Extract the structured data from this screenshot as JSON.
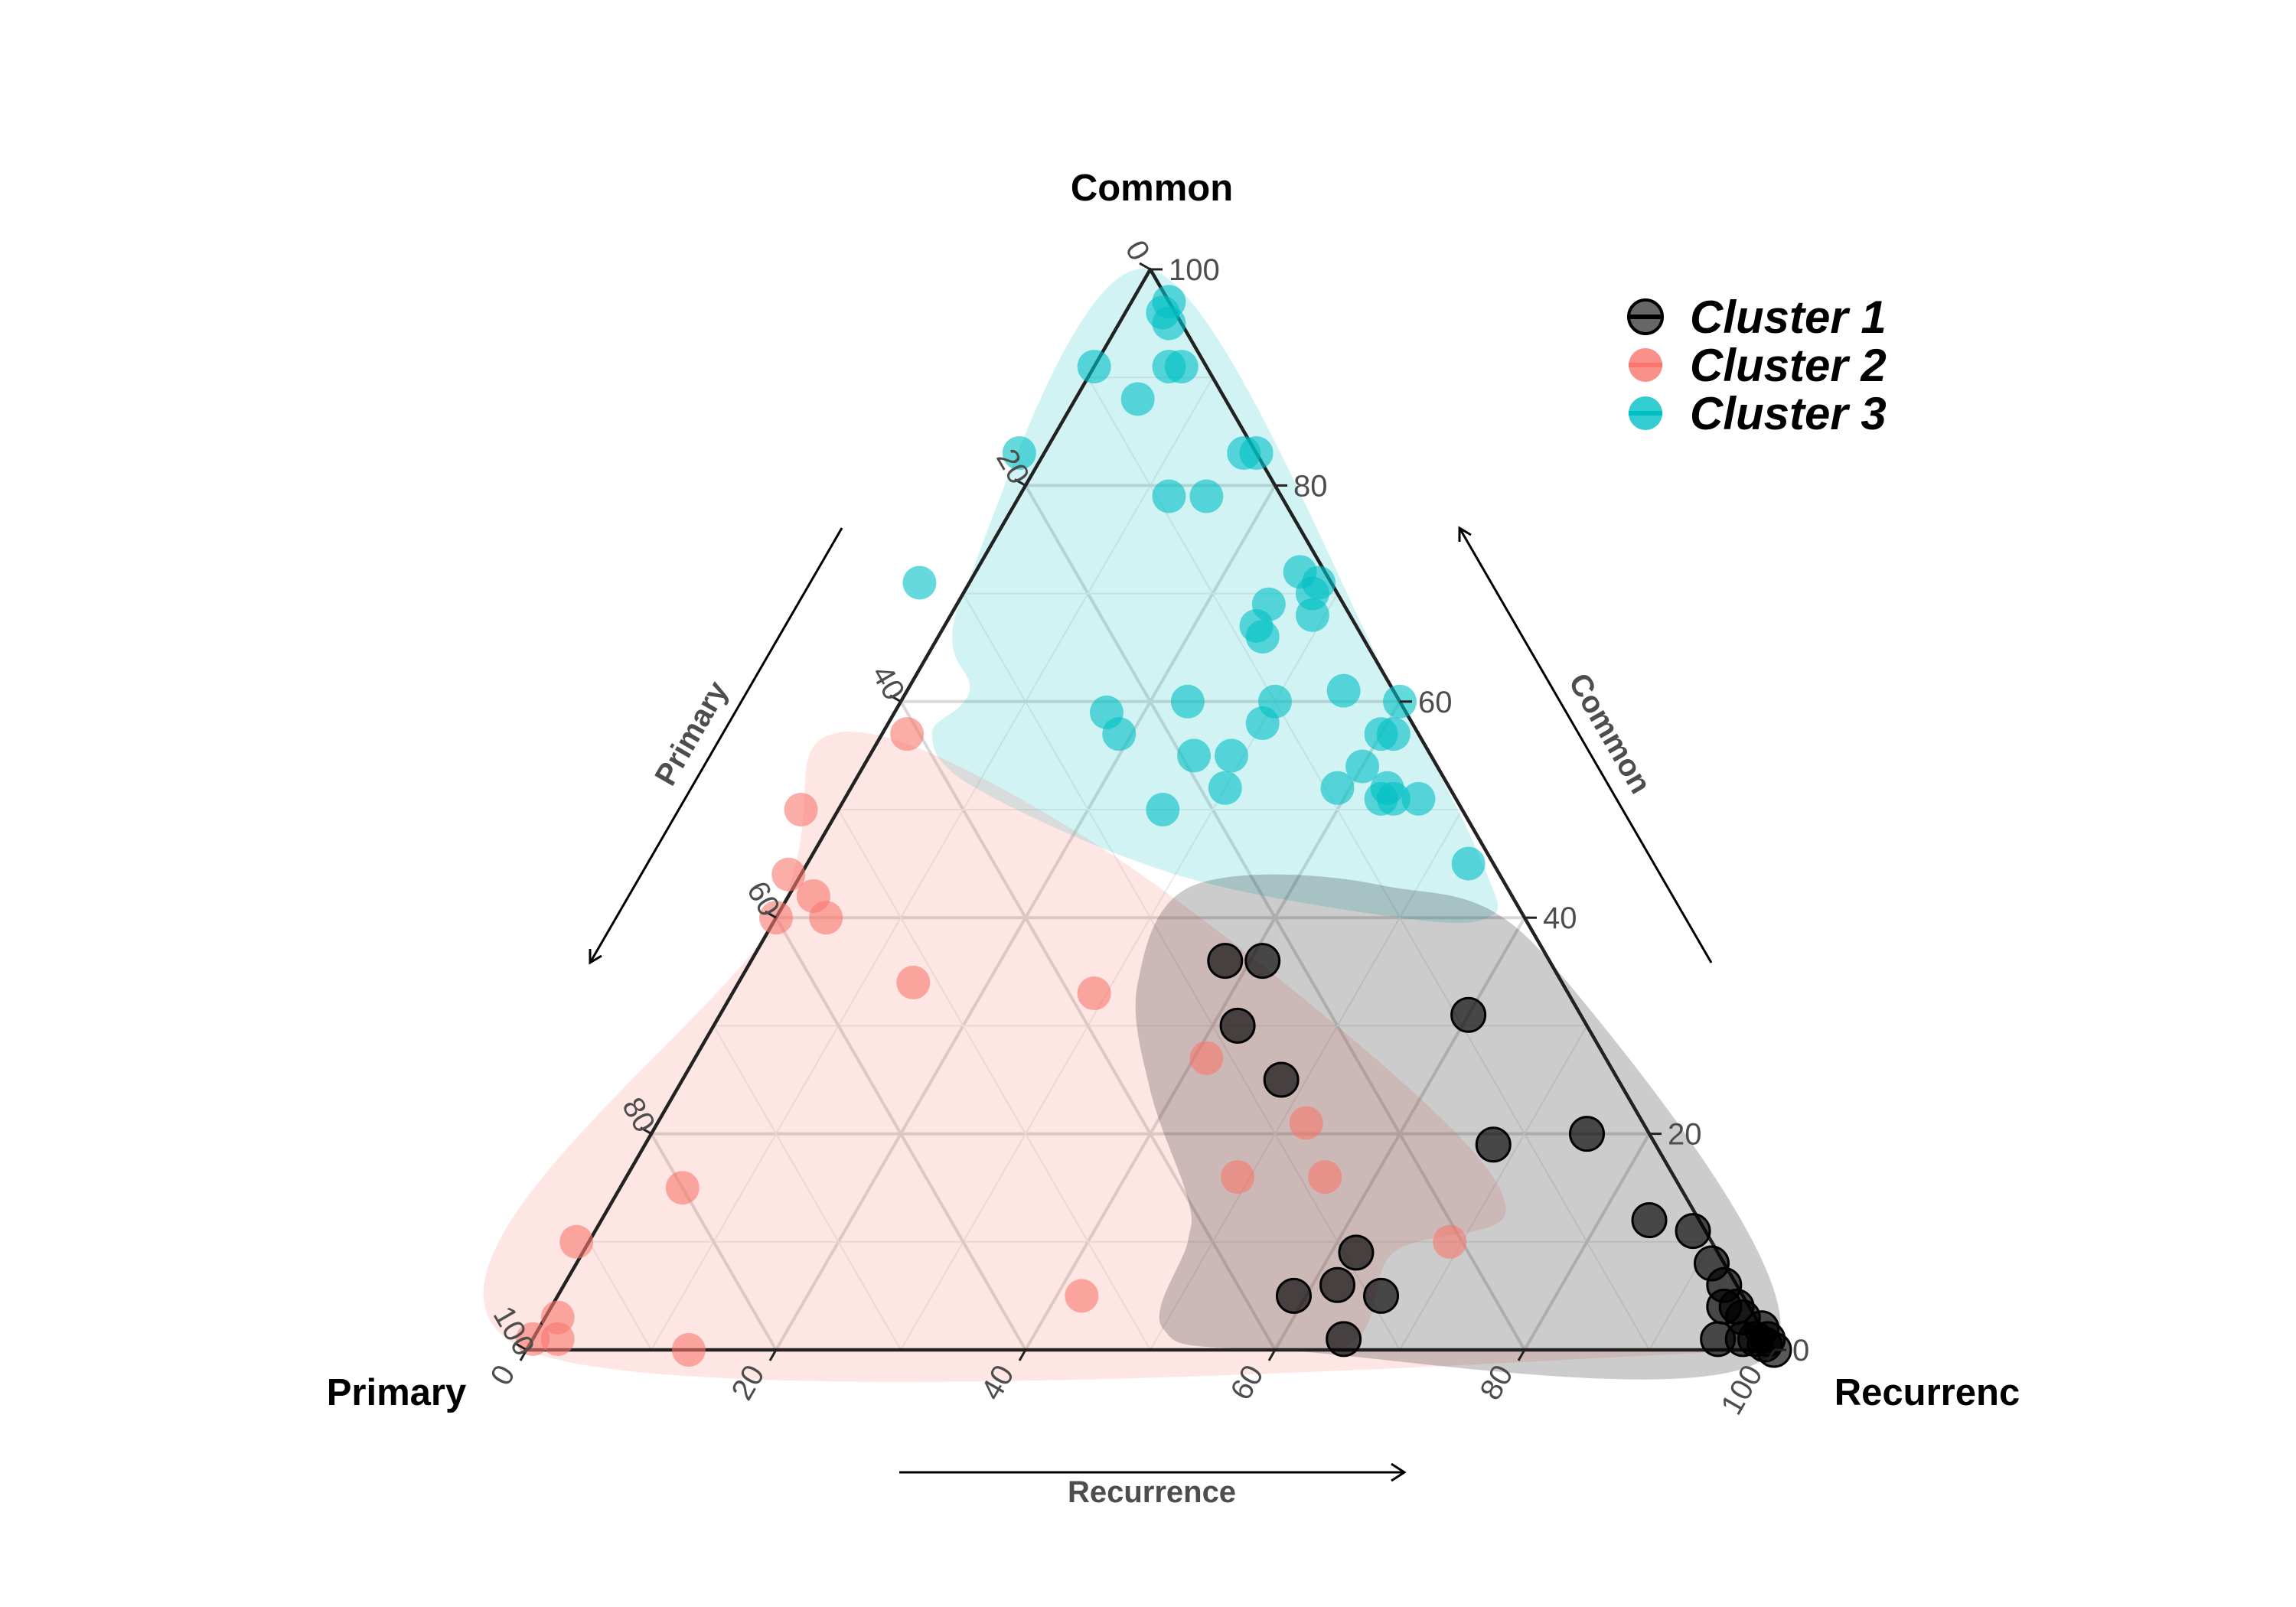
{
  "chart_data": {
    "type": "scatter",
    "subtype": "ternary",
    "vertices": {
      "top": "Common",
      "left": "Primary",
      "right": "Recurrenc"
    },
    "axis_titles": {
      "left": "Primary",
      "right": "Common",
      "bottom": "Recurrence"
    },
    "ticks": [
      0,
      20,
      40,
      60,
      80,
      100
    ],
    "grid": true,
    "legend_position": "top-right",
    "series": [
      {
        "name": "Cluster 1",
        "color": "#000000",
        "points": [
          [
            36,
            5,
            59
          ],
          [
            34,
            1,
            65
          ],
          [
            32,
            6,
            62
          ],
          [
            29,
            5,
            66
          ],
          [
            29,
            9,
            62
          ],
          [
            28,
            30,
            42
          ],
          [
            27,
            25,
            48
          ],
          [
            26,
            36,
            38
          ],
          [
            23,
            36,
            41
          ],
          [
            13,
            19,
            68
          ],
          [
            9,
            31,
            60
          ],
          [
            5,
            20,
            75
          ],
          [
            4,
            12,
            84
          ],
          [
            4,
            1,
            95
          ],
          [
            2,
            4,
            94
          ],
          [
            1,
            11,
            88
          ],
          [
            1,
            8,
            91
          ],
          [
            1,
            6,
            93
          ],
          [
            1,
            4,
            95
          ],
          [
            1,
            3,
            96
          ],
          [
            0,
            2,
            98
          ],
          [
            0,
            1,
            99
          ],
          [
            0,
            0,
            100
          ],
          [
            0.5,
            0.5,
            99
          ],
          [
            1,
            1,
            98
          ],
          [
            2,
            1,
            97
          ]
        ],
        "hull": [
          [
            40,
            0,
            60
          ],
          [
            48,
            2,
            50
          ],
          [
            42,
            10,
            48
          ],
          [
            40,
            14,
            46
          ],
          [
            38,
            24,
            38
          ],
          [
            34,
            34,
            32
          ],
          [
            25,
            43,
            32
          ],
          [
            10,
            43,
            47
          ],
          [
            0,
            36,
            64
          ],
          [
            0,
            0,
            100
          ]
        ]
      },
      {
        "name": "Cluster 2",
        "color": "#F8766D",
        "points": [
          [
            99,
            1,
            0
          ],
          [
            96,
            3,
            1
          ],
          [
            97,
            1,
            2
          ],
          [
            87,
            0,
            13
          ],
          [
            91,
            10,
            -1
          ],
          [
            80,
            15,
            5
          ],
          [
            60,
            40,
            0
          ],
          [
            56,
            40,
            4
          ],
          [
            56,
            42,
            2
          ],
          [
            57,
            44,
            -1
          ],
          [
            52,
            34,
            14
          ],
          [
            53,
            50,
            -3
          ],
          [
            41,
            57,
            2
          ],
          [
            38,
            33,
            29
          ],
          [
            32,
            27,
            41
          ],
          [
            35,
            16,
            49
          ],
          [
            53,
            5,
            42
          ],
          [
            28,
            16,
            56
          ],
          [
            27,
            21,
            52
          ],
          [
            21,
            10,
            69
          ]
        ],
        "hull": [
          [
            100,
            0,
            0
          ],
          [
            0,
            0,
            100
          ],
          [
            55,
            0,
            45
          ],
          [
            35,
            0,
            65
          ],
          [
            26,
            9,
            65
          ],
          [
            15,
            13,
            72
          ],
          [
            18,
            26,
            56
          ],
          [
            32,
            48,
            20
          ],
          [
            47,
            57,
            -4
          ],
          [
            60,
            40,
            0
          ]
        ]
      },
      {
        "name": "Cluster 3",
        "color": "#00BFC4",
        "points": [
          [
            0,
            97,
            3
          ],
          [
            1,
            96,
            3
          ],
          [
            1,
            95,
            4
          ],
          [
            9,
            91,
            0
          ],
          [
            7,
            88,
            5
          ],
          [
            3,
            91,
            6
          ],
          [
            2,
            91,
            7
          ],
          [
            19,
            83,
            -2
          ],
          [
            1,
            83,
            16
          ],
          [
            0,
            83,
            17
          ],
          [
            9,
            79,
            12
          ],
          [
            6,
            79,
            15
          ],
          [
            33,
            71,
            -4
          ],
          [
            6,
            69,
            25
          ],
          [
            8,
            67,
            25
          ],
          [
            8,
            66,
            26
          ],
          [
            2,
            72,
            26
          ],
          [
            2,
            70,
            28
          ],
          [
            1,
            71,
            28
          ],
          [
            3,
            68,
            29
          ],
          [
            24,
            59,
            17
          ],
          [
            24,
            57,
            19
          ],
          [
            17,
            60,
            23
          ],
          [
            12,
            58,
            30
          ],
          [
            10,
            60,
            30
          ],
          [
            19,
            55,
            26
          ],
          [
            18,
            52,
            30
          ],
          [
            16,
            55,
            29
          ],
          [
            24,
            50,
            26
          ],
          [
            0,
            60,
            40
          ],
          [
            4,
            61,
            35
          ],
          [
            3,
            57,
            40
          ],
          [
            6,
            51,
            43
          ],
          [
            5,
            51,
            44
          ],
          [
            2,
            45,
            53
          ],
          [
            5,
            52,
            43
          ],
          [
            3,
            51,
            46
          ],
          [
            6,
            54,
            40
          ],
          [
            9,
            52,
            39
          ],
          [
            2,
            57,
            41
          ]
        ],
        "hull": [
          [
            30,
            70,
            0
          ],
          [
            0,
            100,
            0
          ],
          [
            0,
            60,
            40
          ],
          [
            1,
            44,
            55
          ],
          [
            3,
            40,
            57
          ],
          [
            10,
            40,
            50
          ],
          [
            26,
            44,
            30
          ],
          [
            38,
            52,
            10
          ],
          [
            39,
            57,
            4
          ],
          [
            34,
            61,
            5
          ]
        ]
      }
    ]
  }
}
